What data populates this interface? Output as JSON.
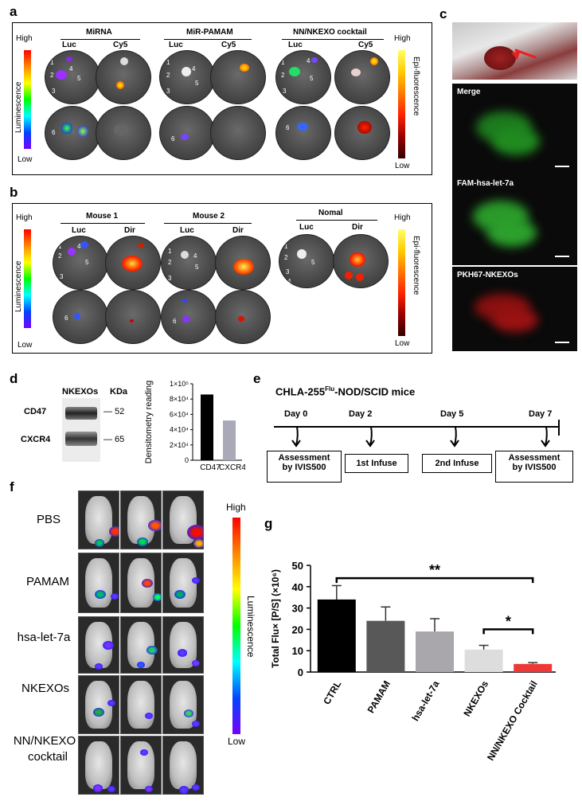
{
  "panels": {
    "a": "a",
    "b": "b",
    "c": "c",
    "d": "d",
    "e": "e",
    "f": "f",
    "g": "g"
  },
  "panel_a": {
    "groups": [
      "MiRNA",
      "MiR-PAMAM",
      "NN/NKEXO cocktail"
    ],
    "luc": "Luc",
    "cy5": "Cy5",
    "left_bar": {
      "high": "High",
      "low": "Low",
      "title": "Luminescence"
    },
    "right_bar": {
      "high": "High",
      "low": "Low",
      "title": "Epi-fluorescence"
    },
    "nums": [
      "1",
      "2",
      "3",
      "4",
      "5",
      "6"
    ]
  },
  "panel_b": {
    "groups": [
      "Mouse 1",
      "Mouse 2",
      "Nomal"
    ],
    "luc": "Luc",
    "dir": "Dir",
    "left_bar": {
      "high": "High",
      "low": "Low",
      "title": "Luminescence"
    },
    "right_bar": {
      "high": "High",
      "low": "Low",
      "title": "Epi-fluorescence"
    }
  },
  "panel_c": {
    "merge": "Merge",
    "fam": "FAM-hsa-let-7a",
    "pkh": "PKH67-NKEXOs"
  },
  "panel_d": {
    "header": "NKEXOs",
    "kda": "KDa",
    "bands": [
      {
        "name": "CD47",
        "kda": "— 52"
      },
      {
        "name": "CXCR4",
        "kda": "— 65"
      }
    ],
    "chart_data": {
      "type": "bar",
      "categories": [
        "CD47",
        "CXCR4"
      ],
      "values": [
        86000,
        52000
      ],
      "ylabel": "Densitometry reading",
      "ylim": [
        0,
        100000
      ],
      "yticks": [
        "0",
        "2×10⁴",
        "4×10⁴",
        "6×10⁴",
        "8×10⁴",
        "1×10⁵"
      ],
      "colors": [
        "#000000",
        "#a9a9b8"
      ]
    }
  },
  "panel_e": {
    "title_main": "CHLA-255",
    "title_sup": "Flu",
    "title_rest": "-NOD/SCID mice",
    "days": [
      "Day 0",
      "Day 2",
      "Day 5",
      "Day 7"
    ],
    "boxes": [
      {
        "line1": "Assessment",
        "line2": "by IVIS500"
      },
      {
        "line1": "1st Infuse"
      },
      {
        "line1": "2nd Infuse"
      },
      {
        "line1": "Assessment",
        "line2": "by IVIS500"
      }
    ]
  },
  "panel_f": {
    "rows": [
      "PBS",
      "PAMAM",
      "hsa-let-7a",
      "NKEXOs",
      "NN/NKEXO"
    ],
    "row_extra": "cocktail",
    "bar": {
      "high": "High",
      "low": "Low",
      "title": "Luminescence"
    }
  },
  "panel_g": {
    "chart_data": {
      "type": "bar",
      "categories": [
        "CTRL",
        "PAMAM",
        "hsa-let-7a",
        "NKEXOs",
        "NN/NKEXO Cocktail"
      ],
      "values": [
        34,
        24,
        19,
        10.5,
        3.8
      ],
      "errors": [
        6.5,
        6.5,
        6,
        2,
        0.6
      ],
      "colors": [
        "#000000",
        "#585858",
        "#a9a6ac",
        "#dddddd",
        "#ee3838"
      ],
      "ylabel": "Total Flu× [P/S] (×10⁶)",
      "ylim": [
        0,
        50
      ],
      "yticks": [
        0,
        10,
        20,
        30,
        40,
        50
      ],
      "significance": [
        {
          "from": 0,
          "to": 4,
          "label": "**"
        },
        {
          "from": 3,
          "to": 4,
          "label": "*"
        }
      ]
    }
  }
}
